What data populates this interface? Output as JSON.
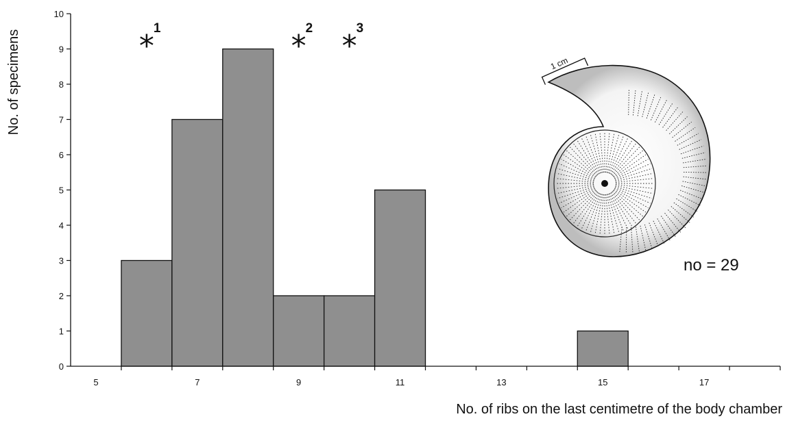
{
  "chart_data": {
    "type": "bar",
    "title": "",
    "xlabel": "No. of ribs on the last centimetre of the body chamber",
    "ylabel": "No. of specimens",
    "x_range": [
      4.5,
      18.5
    ],
    "ylim": [
      0,
      10
    ],
    "x_tick_values": [
      5,
      6,
      7,
      8,
      9,
      10,
      11,
      12,
      13,
      14,
      15,
      16,
      17,
      18
    ],
    "x_tick_labels": [
      {
        "value": 5,
        "label": "5"
      },
      {
        "value": 7,
        "label": "7"
      },
      {
        "value": 9,
        "label": "9"
      },
      {
        "value": 11,
        "label": "11"
      },
      {
        "value": 13,
        "label": "13"
      },
      {
        "value": 15,
        "label": "15"
      },
      {
        "value": 17,
        "label": "17"
      }
    ],
    "y_ticks": [
      "0",
      "1",
      "2",
      "3",
      "4",
      "5",
      "6",
      "7",
      "8",
      "9",
      "10"
    ],
    "bars": [
      {
        "x": 6,
        "value": 3
      },
      {
        "x": 7,
        "value": 7
      },
      {
        "x": 8,
        "value": 9
      },
      {
        "x": 9,
        "value": 2
      },
      {
        "x": 10,
        "value": 2
      },
      {
        "x": 11,
        "value": 5
      },
      {
        "x": 15,
        "value": 1
      }
    ],
    "bar_color": "#8f8f8f",
    "grid": false,
    "markers": [
      {
        "x": 6,
        "symbol": "*",
        "label": "1"
      },
      {
        "x": 9,
        "symbol": "*",
        "label": "2"
      },
      {
        "x": 10,
        "symbol": "*",
        "label": "3"
      }
    ],
    "annotation": "no = 29",
    "inset": {
      "description_icon": "ammonite-shell-drawing",
      "scale_label": "1 cm"
    }
  }
}
